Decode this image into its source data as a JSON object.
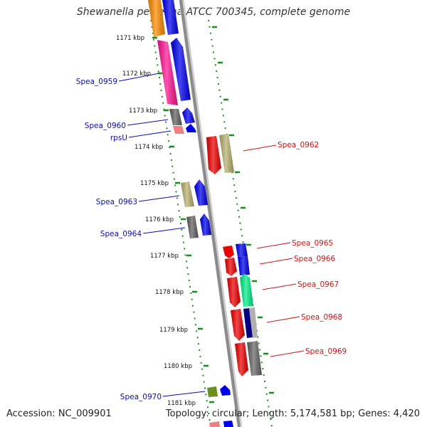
{
  "title": "Shewanella pealeana ATCC 700345, complete genome",
  "accession": "Accession: NC_009901",
  "summary": "Topology: circular; Length: 5,174,581 bp; Genes: 4,420",
  "colors": {
    "backbone": "#8a8a8a",
    "tick_dots": "#1a8a1a",
    "left_label": "#0a0ab4",
    "right_label": "#cc1111"
  },
  "kbp_labels": [
    "1171 kbp",
    "1172 kbp",
    "1173 kbp",
    "1174 kbp",
    "1175 kbp",
    "1176 kbp",
    "1177 kbp",
    "1178 kbp",
    "1179 kbp",
    "1180 kbp",
    "1181 kbp"
  ],
  "left_gene_labels": [
    "Spea_0959",
    "Spea_0960",
    "rpsU",
    "Spea_0963",
    "Spea_0964",
    "Spea_0970"
  ],
  "right_gene_labels": [
    "Spea_0962",
    "Spea_0965",
    "Spea_0966",
    "Spea_0967",
    "Spea_0968",
    "Spea_0969"
  ]
}
